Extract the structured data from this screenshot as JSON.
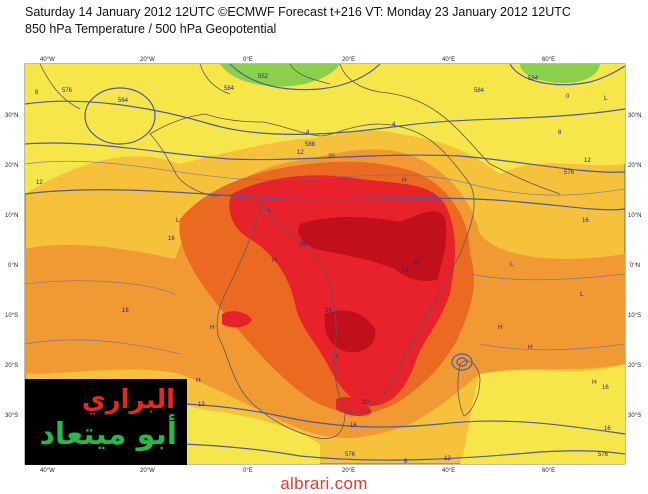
{
  "header": {
    "line1": "Saturday 14 January 2012 12UTC ©ECMWF Forecast t+216 VT: Monday 23 January 2012 12UTC",
    "line2": "850 hPa Temperature / 500 hPa Geopotential"
  },
  "axes": {
    "lon_labels": [
      "40°W",
      "20°W",
      "0°E",
      "20°E",
      "40°E",
      "60°E"
    ],
    "lat_labels": [
      "30°N",
      "20°N",
      "10°N",
      "0°N",
      "10°S",
      "20°S",
      "30°S"
    ]
  },
  "contour_labels": {
    "isotherms": [
      "8",
      "12",
      "16",
      "20",
      "24",
      "16",
      "12",
      "8",
      "4",
      "0",
      "4",
      "12",
      "16",
      "20",
      "24",
      "16",
      "12",
      "8",
      "12",
      "16",
      "20",
      "16"
    ],
    "geopotential": [
      "564",
      "576",
      "552",
      "584",
      "588",
      "584",
      "576",
      "576",
      "584",
      "576"
    ]
  },
  "pressure_markers": [
    "L",
    "H"
  ],
  "colors": {
    "cold_green": "#8ad04a",
    "yellow": "#f7e64a",
    "light_orange": "#f6c13b",
    "orange": "#f19a33",
    "dark_orange": "#ea6a22",
    "red": "#e8222a",
    "dark_red": "#c0101c",
    "contour": "#4a5aa8"
  },
  "logo": {
    "line1": "البراري",
    "line2": "أبو ميتعاد"
  },
  "footer": {
    "website": "albrari.com"
  }
}
